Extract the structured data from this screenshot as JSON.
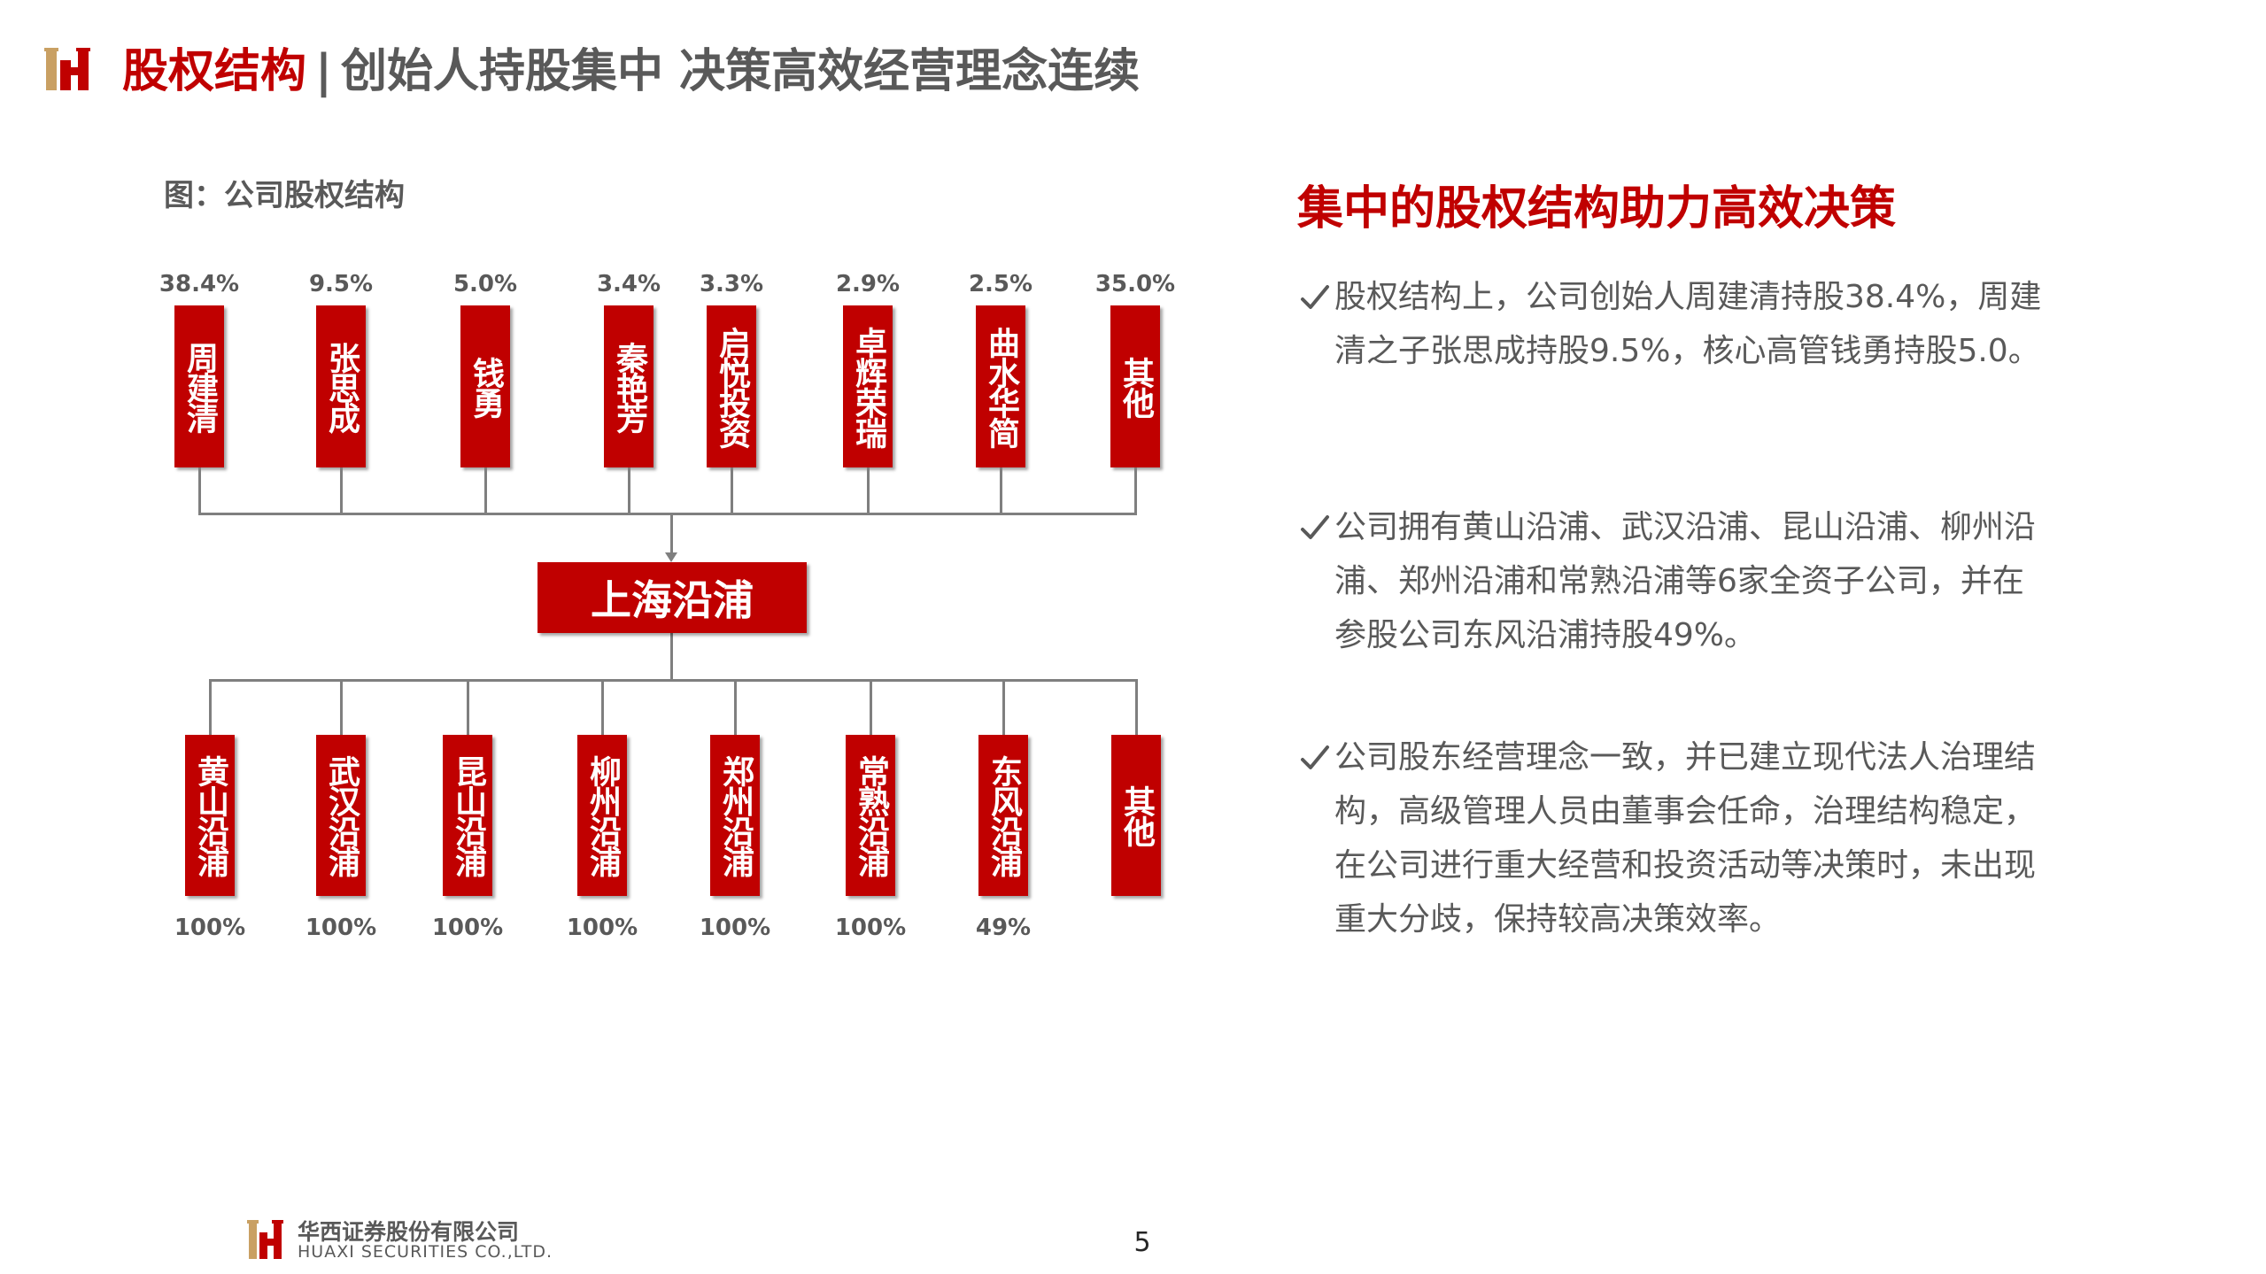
{
  "header": {
    "title_main": "股权结构",
    "separator": "|",
    "title_sub": "创始人持股集中 决策高效经营理念连续"
  },
  "figure": {
    "caption": "图：公司股权结构",
    "shareholders": [
      {
        "name": "周建清",
        "pct": "38.4%"
      },
      {
        "name": "张思成",
        "pct": "9.5%"
      },
      {
        "name": "钱勇",
        "pct": "5.0%"
      },
      {
        "name": "秦艳芳",
        "pct": "3.4%"
      },
      {
        "name": "启悦投资",
        "pct": "3.3%"
      },
      {
        "name": "卓辉荣瑞",
        "pct": "2.9%"
      },
      {
        "name": "曲水华简",
        "pct": "2.5%"
      },
      {
        "name": "其他",
        "pct": "35.0%"
      }
    ],
    "center": "上海沿浦",
    "subsidiaries": [
      {
        "name": "黄山沿浦",
        "pct": "100%"
      },
      {
        "name": "武汉沿浦",
        "pct": "100%"
      },
      {
        "name": "昆山沿浦",
        "pct": "100%"
      },
      {
        "name": "柳州沿浦",
        "pct": "100%"
      },
      {
        "name": "郑州沿浦",
        "pct": "100%"
      },
      {
        "name": "常熟沿浦",
        "pct": "100%"
      },
      {
        "name": "东风沿浦",
        "pct": "49%"
      },
      {
        "name": "其他",
        "pct": ""
      }
    ]
  },
  "panel": {
    "heading": "集中的股权结构助力高效决策",
    "bullets": [
      "股权结构上，公司创始人周建清持股38.4%，周建清之子张思成持股9.5%，核心高管钱勇持股5.0。",
      "公司拥有黄山沿浦、武汉沿浦、昆山沿浦、柳州沿浦、郑州沿浦和常熟沿浦等6家全资子公司，并在参股公司东风沿浦持股49%。",
      "公司股东经营理念一致，并已建立现代法人治理结构，高级管理人员由董事会任命，治理结构稳定，在公司进行重大经营和投资活动等决策时，未出现重大分歧，保持较高决策效率。"
    ]
  },
  "footer": {
    "company_cn": "华西证券股份有限公司",
    "company_en": "HUAXI SECURITIES CO.,LTD.",
    "page_number": "5"
  },
  "colors": {
    "brand_red": "#c00000",
    "text_gray": "#595959",
    "connector_gray": "#7f7f7f",
    "logo_gold": "#c9a063"
  }
}
